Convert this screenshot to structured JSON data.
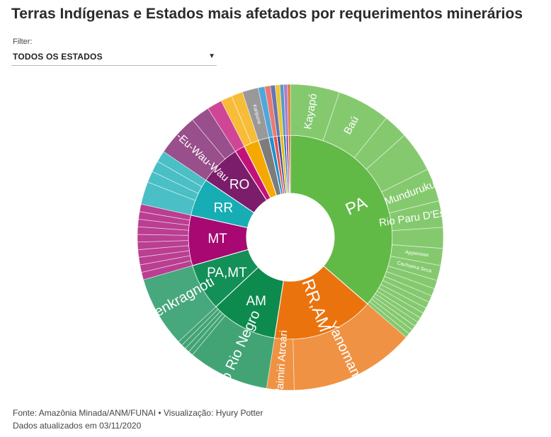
{
  "title": "Terras Indígenas e Estados mais afetados por requerimentos minerários",
  "filter": {
    "label": "Filter:",
    "value": "TODOS OS ESTADOS",
    "caret_icon": "chevron-down-icon"
  },
  "footer": {
    "source": "Fonte: Amazônia Minada/ANM/FUNAI • Visualização: Hyury Potter",
    "updated": "Dados atualizados em 03/11/2020"
  },
  "chart_data": {
    "type": "sunburst",
    "unit": "share of mining requests (estimated, %)",
    "states": [
      {
        "label": "PA",
        "value": 36.5,
        "color": "#62ba46",
        "children": [
          {
            "label": "Kayapó",
            "value": 5.2
          },
          {
            "label": "Baú",
            "value": 5.6
          },
          {
            "label": "",
            "value": 2.6
          },
          {
            "label": "",
            "value": 4.3
          },
          {
            "label": "Munduruku",
            "value": 3.5
          },
          {
            "label": "Rio Paru D'Este",
            "value": 2.8
          },
          {
            "label": "",
            "value": 2.2
          },
          {
            "label": "Apyterewa",
            "value": 1.8
          },
          {
            "label": "Cachoeira Seca",
            "value": 1.6
          },
          {
            "label": "",
            "value": 0.9
          },
          {
            "label": "",
            "value": 0.8
          },
          {
            "label": "",
            "value": 0.7
          },
          {
            "label": "",
            "value": 0.7
          },
          {
            "label": "",
            "value": 0.6
          },
          {
            "label": "",
            "value": 0.6
          },
          {
            "label": "",
            "value": 0.5
          },
          {
            "label": "",
            "value": 0.5
          },
          {
            "label": "",
            "value": 0.5
          },
          {
            "label": "",
            "value": 0.5
          },
          {
            "label": "",
            "value": 0.5
          }
        ]
      },
      {
        "label": "RR,AM",
        "value": 16.2,
        "color": "#ea730e",
        "children": [
          {
            "label": "Yanomami",
            "value": 13.3
          },
          {
            "label": "Waimiri Atroari",
            "value": 2.9
          }
        ]
      },
      {
        "label": "AM",
        "value": 10.6,
        "color": "#0d8a4e",
        "children": [
          {
            "label": "Alto Rio Negro",
            "value": 8.6
          },
          {
            "label": "",
            "value": 0.5
          },
          {
            "label": "",
            "value": 0.5
          },
          {
            "label": "",
            "value": 0.5
          },
          {
            "label": "",
            "value": 0.5
          }
        ]
      },
      {
        "label": "PA,MT",
        "value": 7.5,
        "color": "#138f58",
        "children": [
          {
            "label": "Menkragnoti",
            "value": 7.5
          }
        ]
      },
      {
        "label": "MT",
        "value": 8.0,
        "color": "#a70872",
        "children": [
          {
            "label": "",
            "value": 0.8
          },
          {
            "label": "",
            "value": 0.8
          },
          {
            "label": "",
            "value": 0.8
          },
          {
            "label": "",
            "value": 0.8
          },
          {
            "label": "",
            "value": 0.8
          },
          {
            "label": "",
            "value": 0.8
          },
          {
            "label": "",
            "value": 0.8
          },
          {
            "label": "",
            "value": 0.8
          },
          {
            "label": "",
            "value": 0.8
          },
          {
            "label": "",
            "value": 0.8
          }
        ]
      },
      {
        "label": "RR",
        "value": 6.0,
        "color": "#17adb4",
        "children": [
          {
            "label": "",
            "value": 2.4
          },
          {
            "label": "",
            "value": 1.2
          },
          {
            "label": "",
            "value": 1.2
          },
          {
            "label": "",
            "value": 1.2
          }
        ]
      },
      {
        "label": "RO",
        "value": 6.5,
        "color": "#7b1d6a",
        "children": [
          {
            "label": "Uru-Eu-Wau-Wau",
            "value": 4.5
          },
          {
            "label": "",
            "value": 2.0
          }
        ]
      },
      {
        "label": "",
        "value": 1.6,
        "color": "#c2127a",
        "children": [
          {
            "label": "",
            "value": 1.6
          }
        ]
      },
      {
        "label": "",
        "value": 2.4,
        "color": "#f5a900",
        "children": [
          {
            "label": "",
            "value": 1.2
          },
          {
            "label": "",
            "value": 1.2
          }
        ]
      },
      {
        "label": "",
        "value": 1.7,
        "color": "#7c7c7c",
        "children": [
          {
            "label": "Karipuna",
            "value": 1.7
          }
        ]
      },
      {
        "label": "",
        "value": 0.7,
        "color": "#1f8ecf",
        "children": [
          {
            "label": "",
            "value": 0.7
          }
        ]
      },
      {
        "label": "",
        "value": 0.6,
        "color": "#e5534b",
        "children": [
          {
            "label": "",
            "value": 0.6
          }
        ]
      },
      {
        "label": "",
        "value": 0.5,
        "color": "#3c4f9a",
        "children": [
          {
            "label": "",
            "value": 0.5
          }
        ]
      },
      {
        "label": "",
        "value": 0.5,
        "color": "#e3b800",
        "children": [
          {
            "label": "",
            "value": 0.5
          }
        ]
      },
      {
        "label": "",
        "value": 0.4,
        "color": "#2c7bb6",
        "children": [
          {
            "label": "",
            "value": 0.4
          }
        ]
      },
      {
        "label": "",
        "value": 0.4,
        "color": "#9b59b6",
        "children": [
          {
            "label": "",
            "value": 0.4
          }
        ]
      },
      {
        "label": "",
        "value": 0.3,
        "color": "#d35400",
        "children": [
          {
            "label": "",
            "value": 0.3
          }
        ]
      }
    ]
  }
}
